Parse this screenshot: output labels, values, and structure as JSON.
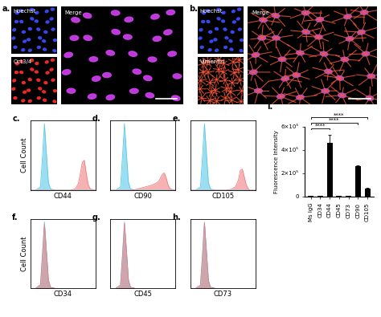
{
  "images": [
    {
      "panel_label": "a.",
      "kind": "nuclei",
      "small": [
        {
          "text": "Hoechst",
          "color": "#3a4cff"
        },
        {
          "text": "Oct3/4",
          "color": "#ff2a2a"
        }
      ],
      "merge": {
        "text": "Merge"
      }
    },
    {
      "panel_label": "b.",
      "kind": "filaments",
      "small": [
        {
          "text": "Hoechst",
          "color": "#3a4cff"
        },
        {
          "text": "Vimentin",
          "color": "#ff5a3a"
        }
      ],
      "merge": {
        "text": "Merge"
      }
    }
  ],
  "chart_data": [
    {
      "panel_label": "c.",
      "type": "area",
      "xlabel": "CD44",
      "ylabel": "Cell Count",
      "tick_labels": false,
      "xlim": [
        -1,
        5.5
      ],
      "ylim": [
        0,
        1.05
      ],
      "x": [
        -1,
        -0.5,
        0,
        0.2,
        0.4,
        0.6,
        0.8,
        1.0,
        1.5,
        2,
        2.5,
        3,
        3.5,
        3.8,
        4.0,
        4.2,
        4.4,
        4.6,
        4.8,
        5,
        5.5
      ],
      "series": [
        {
          "color": "#5bc8e8",
          "values": [
            0,
            0,
            0.05,
            0.5,
            1.0,
            0.55,
            0.12,
            0.02,
            0,
            0,
            0,
            0,
            0,
            0,
            0,
            0,
            0,
            0,
            0,
            0,
            0
          ]
        },
        {
          "color": "#f08080",
          "values": [
            0,
            0,
            0,
            0,
            0,
            0,
            0,
            0,
            0,
            0,
            0,
            0,
            0.02,
            0.1,
            0.25,
            0.42,
            0.45,
            0.25,
            0.08,
            0.02,
            0
          ]
        }
      ]
    },
    {
      "panel_label": "d.",
      "type": "area",
      "xlabel": "CD90",
      "tick_labels": false,
      "xlim": [
        -1,
        5.5
      ],
      "ylim": [
        0,
        1.05
      ],
      "x": [
        -1,
        -0.5,
        0,
        0.2,
        0.4,
        0.6,
        0.8,
        1.0,
        1.5,
        2,
        2.5,
        3,
        3.5,
        3.8,
        4.0,
        4.2,
        4.4,
        4.6,
        4.8,
        5,
        5.5
      ],
      "series": [
        {
          "color": "#5bc8e8",
          "values": [
            0,
            0,
            0.05,
            0.5,
            1.0,
            0.55,
            0.12,
            0.02,
            0,
            0,
            0,
            0,
            0,
            0,
            0,
            0,
            0,
            0,
            0,
            0,
            0
          ]
        },
        {
          "color": "#f08080",
          "values": [
            0,
            0,
            0,
            0,
            0,
            0,
            0,
            0,
            0.01,
            0.03,
            0.05,
            0.07,
            0.1,
            0.13,
            0.18,
            0.24,
            0.26,
            0.18,
            0.07,
            0.02,
            0
          ]
        }
      ]
    },
    {
      "panel_label": "e.",
      "type": "area",
      "xlabel": "CD105",
      "tick_labels": false,
      "xlim": [
        -1,
        5.5
      ],
      "ylim": [
        0,
        1.05
      ],
      "x": [
        -1,
        -0.5,
        0,
        0.2,
        0.4,
        0.6,
        0.8,
        1.0,
        1.5,
        2,
        2.5,
        3,
        3.5,
        3.8,
        4.0,
        4.2,
        4.4,
        4.6,
        4.8,
        5,
        5.5
      ],
      "series": [
        {
          "color": "#5bc8e8",
          "values": [
            0,
            0,
            0.05,
            0.5,
            1.0,
            0.55,
            0.12,
            0.02,
            0,
            0,
            0,
            0,
            0,
            0,
            0,
            0,
            0,
            0,
            0,
            0,
            0
          ]
        },
        {
          "color": "#f08080",
          "values": [
            0,
            0,
            0,
            0,
            0,
            0,
            0,
            0,
            0,
            0,
            0,
            0.01,
            0.05,
            0.15,
            0.3,
            0.32,
            0.2,
            0.08,
            0.02,
            0,
            0
          ]
        }
      ]
    },
    {
      "panel_label": "f.",
      "type": "area",
      "xlabel": "CD34",
      "ylabel": "Cell Count",
      "tick_labels": false,
      "xlim": [
        -1,
        5.5
      ],
      "ylim": [
        0,
        1.05
      ],
      "x": [
        -1,
        -0.5,
        0,
        0.2,
        0.4,
        0.6,
        0.8,
        1.0,
        1.5,
        2,
        2.5,
        3,
        3.5,
        3.8,
        4.0,
        4.2,
        4.4,
        4.6,
        4.8,
        5,
        5.5
      ],
      "series": [
        {
          "color": "#5bc8e8",
          "values": [
            0,
            0,
            0.05,
            0.5,
            1.0,
            0.55,
            0.12,
            0.02,
            0,
            0,
            0,
            0,
            0,
            0,
            0,
            0,
            0,
            0,
            0,
            0,
            0
          ]
        },
        {
          "color": "#f08080",
          "values": [
            0,
            0,
            0.06,
            0.52,
            0.97,
            0.56,
            0.13,
            0.02,
            0,
            0,
            0,
            0,
            0,
            0,
            0,
            0,
            0,
            0,
            0,
            0,
            0
          ]
        }
      ]
    },
    {
      "panel_label": "g.",
      "type": "area",
      "xlabel": "CD45",
      "tick_labels": false,
      "xlim": [
        -1,
        5.5
      ],
      "ylim": [
        0,
        1.05
      ],
      "x": [
        -1,
        -0.5,
        0,
        0.2,
        0.4,
        0.6,
        0.8,
        1.0,
        1.5,
        2,
        2.5,
        3,
        3.5,
        3.8,
        4.0,
        4.2,
        4.4,
        4.6,
        4.8,
        5,
        5.5
      ],
      "series": [
        {
          "color": "#5bc8e8",
          "values": [
            0,
            0,
            0.05,
            0.5,
            1.0,
            0.55,
            0.12,
            0.02,
            0,
            0,
            0,
            0,
            0,
            0,
            0,
            0,
            0,
            0,
            0,
            0,
            0
          ]
        },
        {
          "color": "#f08080",
          "values": [
            0,
            0,
            0.05,
            0.48,
            0.98,
            0.58,
            0.13,
            0.02,
            0,
            0,
            0,
            0,
            0,
            0,
            0,
            0,
            0,
            0,
            0,
            0,
            0
          ]
        }
      ]
    },
    {
      "panel_label": "h.",
      "type": "area",
      "xlabel": "CD73",
      "tick_labels": false,
      "xlim": [
        -1,
        5.5
      ],
      "ylim": [
        0,
        1.05
      ],
      "x": [
        -1,
        -0.5,
        0,
        0.2,
        0.4,
        0.6,
        0.8,
        1.0,
        1.5,
        2,
        2.5,
        3,
        3.5,
        3.8,
        4.0,
        4.2,
        4.4,
        4.6,
        4.8,
        5,
        5.5
      ],
      "series": [
        {
          "color": "#5bc8e8",
          "values": [
            0,
            0,
            0.05,
            0.5,
            1.0,
            0.55,
            0.12,
            0.02,
            0,
            0,
            0,
            0,
            0,
            0,
            0,
            0,
            0,
            0,
            0,
            0,
            0
          ]
        },
        {
          "color": "#f08080",
          "values": [
            0,
            0,
            0.05,
            0.5,
            0.99,
            0.56,
            0.12,
            0.02,
            0,
            0,
            0,
            0,
            0,
            0,
            0,
            0,
            0,
            0,
            0,
            0,
            0
          ]
        }
      ]
    },
    {
      "panel_label": "i.",
      "type": "bar",
      "ylabel": "Fluorescence Intensity",
      "categories": [
        "Ms IgG",
        "CD34",
        "CD44",
        "CD45",
        "CD73",
        "CD90",
        "CD105"
      ],
      "values": [
        5000,
        3000,
        460000,
        3000,
        3000,
        265000,
        70000
      ],
      "errors": [
        1000,
        1000,
        70000,
        1000,
        1000,
        5000,
        5000
      ],
      "color": "#000000",
      "ylim": [
        0,
        600000
      ],
      "yticks": [
        0,
        {
          "value": 200000,
          "label": "2×10⁵"
        },
        {
          "value": 400000,
          "label": "4×10⁵"
        },
        {
          "value": 600000,
          "label": "6×10⁵"
        }
      ],
      "annotations": [
        {
          "from": "Ms IgG",
          "to": "CD44",
          "text": "****"
        },
        {
          "from": "Ms IgG",
          "to": "CD90",
          "text": "****"
        },
        {
          "from": "Ms IgG",
          "to": "CD105",
          "text": "****"
        }
      ]
    }
  ]
}
